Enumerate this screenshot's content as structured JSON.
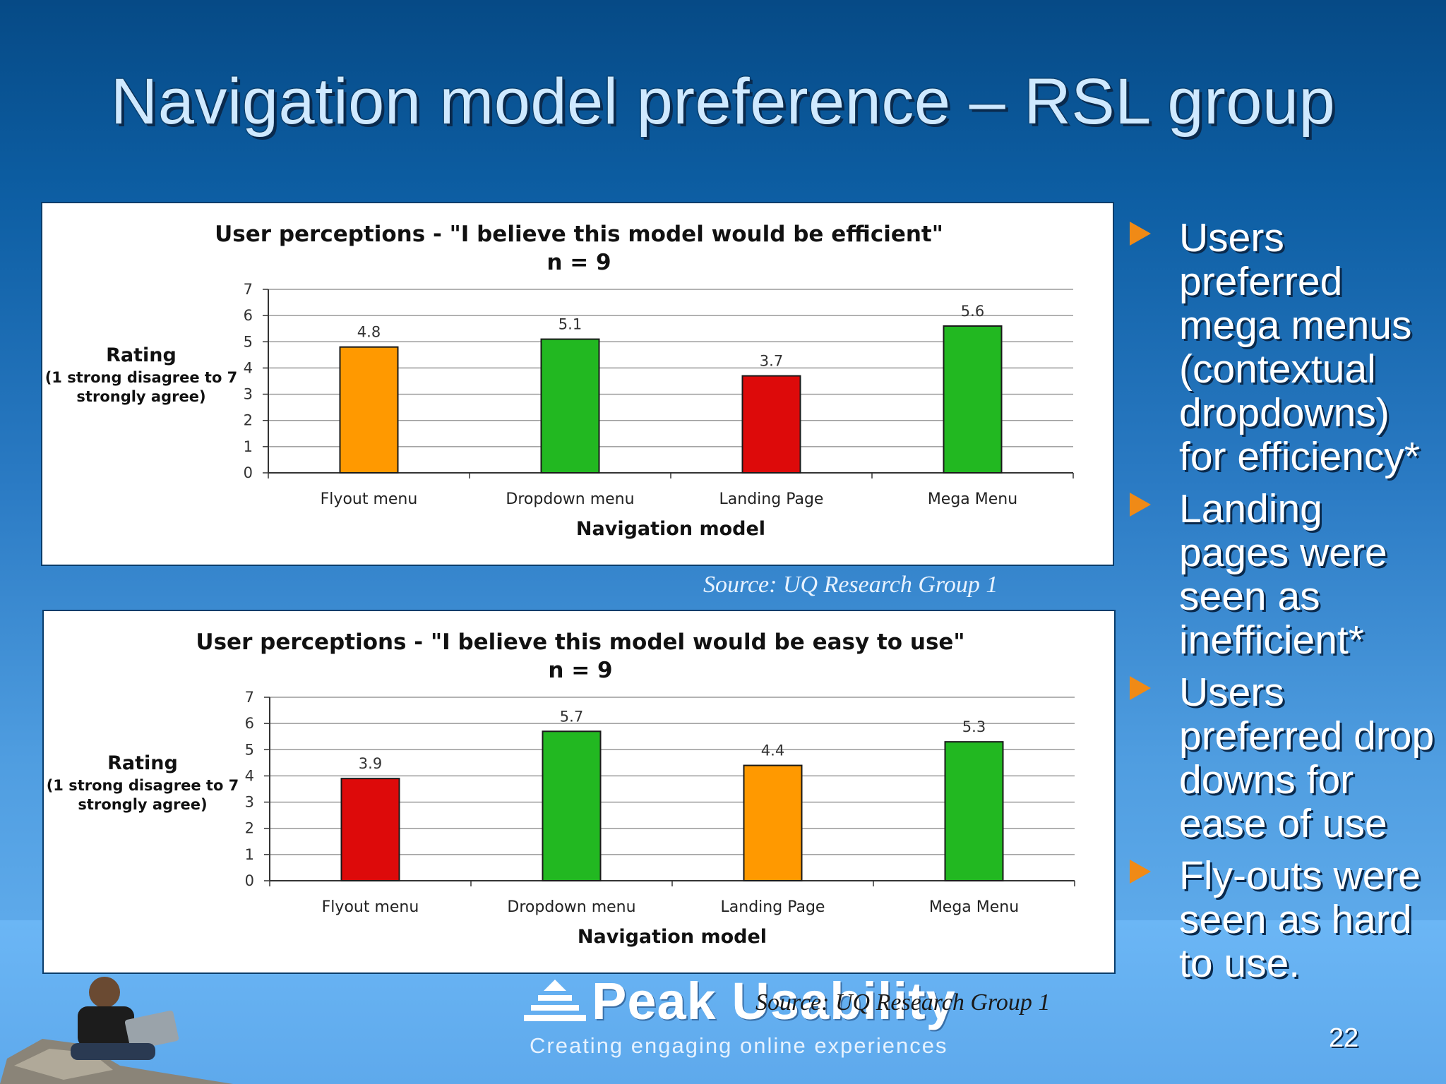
{
  "slide": {
    "title": "Navigation model preference – RSL group",
    "page_number": "22",
    "sources": [
      "Source: UQ Research Group 1",
      "Source: UQ Research Group 1"
    ],
    "logo": {
      "name": "Peak Usability",
      "tagline": "Creating engaging online experiences"
    },
    "bullets": [
      "Users preferred mega menus (contextual dropdowns) for efficiency*",
      "Landing pages were seen as inefficient*",
      "Users preferred drop downs for ease of use",
      "Fly-outs were seen as hard to use."
    ],
    "colors": {
      "orange": "#ff9900",
      "green": "#22b821",
      "red": "#dd0a0a",
      "bullet": "#f08a16"
    }
  },
  "chart_data": [
    {
      "type": "bar",
      "title": "User perceptions - \"I believe this model would be efficient\"",
      "subtitle": "n = 9",
      "xlabel": "Navigation model",
      "ylabel": "Rating",
      "ylabel_sub": [
        "(1 strong disagree to 7",
        "strongly agree)"
      ],
      "categories": [
        "Flyout menu",
        "Dropdown menu",
        "Landing Page",
        "Mega Menu"
      ],
      "values": [
        4.8,
        5.1,
        3.7,
        5.6
      ],
      "value_labels": [
        "4.8",
        "5.1",
        "3.7",
        "5.6"
      ],
      "bar_colors": [
        "#ff9900",
        "#22b821",
        "#dd0a0a",
        "#22b821"
      ],
      "ylim": [
        0,
        7
      ],
      "yticks": [
        "0",
        "1",
        "2",
        "3",
        "4",
        "5",
        "6",
        "7"
      ],
      "grid": true
    },
    {
      "type": "bar",
      "title": "User perceptions - \"I believe this model would be easy to use\"",
      "subtitle": "n = 9",
      "xlabel": "Navigation model",
      "ylabel": "Rating",
      "ylabel_sub": [
        "(1 strong disagree to 7",
        "strongly agree)"
      ],
      "categories": [
        "Flyout menu",
        "Dropdown menu",
        "Landing Page",
        "Mega Menu"
      ],
      "values": [
        3.9,
        5.7,
        4.4,
        5.3
      ],
      "value_labels": [
        "3.9",
        "5.7",
        "4.4",
        "5.3"
      ],
      "bar_colors": [
        "#dd0a0a",
        "#22b821",
        "#ff9900",
        "#22b821"
      ],
      "ylim": [
        0,
        7
      ],
      "yticks": [
        "0",
        "1",
        "2",
        "3",
        "4",
        "5",
        "6",
        "7"
      ],
      "grid": true
    }
  ]
}
